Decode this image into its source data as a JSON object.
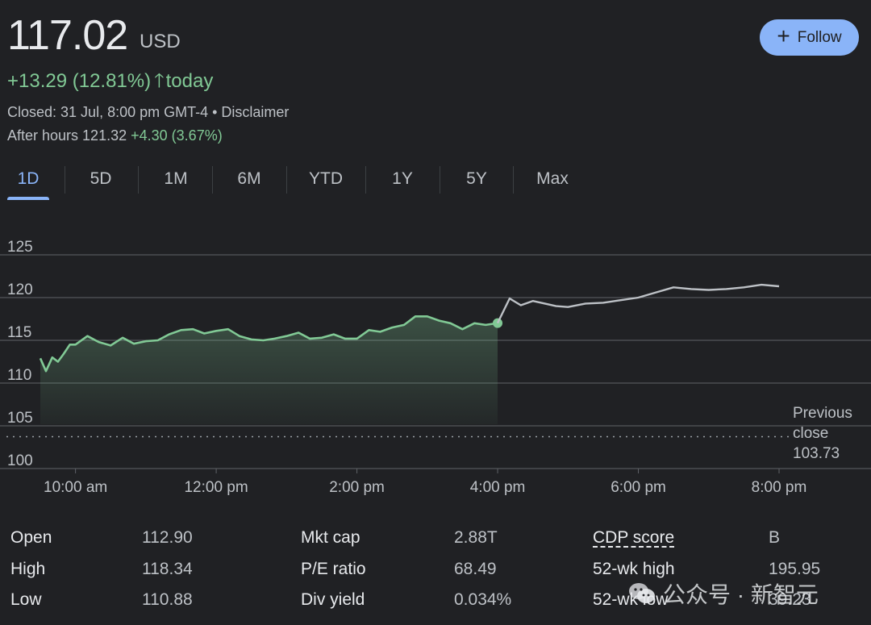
{
  "quote": {
    "price": "117.02",
    "currency": "USD",
    "change": "+13.29 (12.81%)",
    "change_suffix": "today",
    "closed": "Closed: 31 Jul, 8:00 pm GMT-4 • Disclaimer",
    "after_hours_label": "After hours 121.32",
    "after_hours_change": "+4.30 (3.67%)"
  },
  "follow_button": {
    "icon": "plus-icon",
    "label": "Follow"
  },
  "tabs": [
    {
      "label": "1D",
      "active": true
    },
    {
      "label": "5D"
    },
    {
      "label": "1M"
    },
    {
      "label": "6M"
    },
    {
      "label": "YTD"
    },
    {
      "label": "1Y"
    },
    {
      "label": "5Y"
    },
    {
      "label": "Max"
    }
  ],
  "colors": {
    "background": "#202124",
    "positive": "#81c995",
    "after_hours_line": "#bdc1c6",
    "accent": "#8ab4f8",
    "grid": "#5f6368"
  },
  "chart_data": {
    "type": "line",
    "title": "",
    "x_ticks": [
      "10:00 am",
      "12:00 pm",
      "2:00 pm",
      "4:00 pm",
      "6:00 pm",
      "8:00 pm"
    ],
    "y_ticks": [
      "125",
      "120",
      "115",
      "110",
      "105",
      "100"
    ],
    "ylim": [
      100,
      127
    ],
    "grid": true,
    "previous_close": {
      "value": 103.73,
      "label_line1": "Previous",
      "label_line2": "close",
      "label_value": "103.73"
    },
    "series": [
      {
        "session": "regular",
        "x_hours": [
          9.5,
          9.58,
          9.67,
          9.75,
          9.83,
          9.92,
          10.0,
          10.17,
          10.33,
          10.5,
          10.67,
          10.83,
          11.0,
          11.17,
          11.33,
          11.5,
          11.67,
          11.83,
          12.0,
          12.17,
          12.33,
          12.5,
          12.67,
          12.83,
          13.0,
          13.17,
          13.33,
          13.5,
          13.67,
          13.83,
          14.0,
          14.17,
          14.33,
          14.5,
          14.67,
          14.83,
          15.0,
          15.17,
          15.33,
          15.5,
          15.67,
          15.83,
          16.0
        ],
        "y": [
          112.9,
          111.4,
          113.0,
          112.5,
          113.4,
          114.5,
          114.5,
          115.5,
          114.8,
          114.4,
          115.3,
          114.6,
          114.9,
          115.0,
          115.7,
          116.2,
          116.3,
          115.8,
          116.1,
          116.3,
          115.5,
          115.1,
          115.0,
          115.2,
          115.5,
          115.9,
          115.2,
          115.3,
          115.7,
          115.2,
          115.2,
          116.2,
          116.0,
          116.5,
          116.8,
          117.8,
          117.8,
          117.3,
          117.0,
          116.3,
          117.0,
          116.8,
          117.02
        ]
      },
      {
        "session": "after-hours",
        "x_hours": [
          16.0,
          16.17,
          16.33,
          16.5,
          16.67,
          16.83,
          17.0,
          17.25,
          17.5,
          17.75,
          18.0,
          18.25,
          18.5,
          18.75,
          19.0,
          19.25,
          19.5,
          19.75,
          20.0
        ],
        "y": [
          117.02,
          119.9,
          119.1,
          119.6,
          119.3,
          119.0,
          118.9,
          119.3,
          119.4,
          119.7,
          120.0,
          120.6,
          121.2,
          121.0,
          120.9,
          121.0,
          121.2,
          121.5,
          121.32
        ]
      }
    ]
  },
  "stats": [
    {
      "label": "Open",
      "value": "112.90"
    },
    {
      "label": "High",
      "value": "118.34"
    },
    {
      "label": "Low",
      "value": "110.88"
    },
    {
      "label": "Mkt cap",
      "value": "2.88T"
    },
    {
      "label": "P/E ratio",
      "value": "68.49"
    },
    {
      "label": "Div yield",
      "value": "0.034%"
    },
    {
      "label": "CDP score",
      "value": "B"
    },
    {
      "label": "52-wk high",
      "value": "195.95"
    },
    {
      "label": "52-wk low",
      "value": "39.23"
    }
  ],
  "watermark": {
    "icon": "wechat-icon",
    "text": "公众号 · 新智元"
  }
}
